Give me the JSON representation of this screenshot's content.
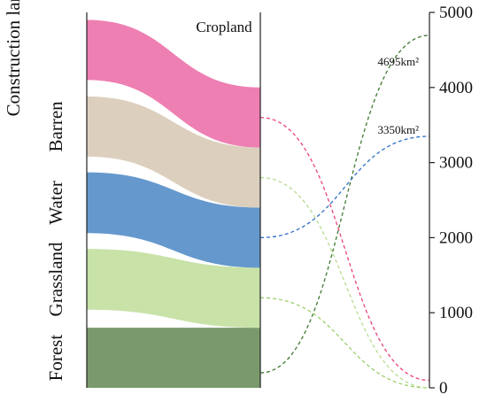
{
  "chart_data": {
    "type": "sankey-with-line-axis",
    "target_label": "Cropland",
    "categories": [
      "Forest",
      "Grassland",
      "Water",
      "Barren",
      "Construction land"
    ],
    "colors": {
      "Forest": "#7a9a6c",
      "Grassland": "#c8e2a8",
      "Water": "#6598cd",
      "Barren": "#dccfbd",
      "Construction land": "#ee7fb2"
    },
    "bands": [
      {
        "name": "Forest",
        "left": [
          0,
          800
        ],
        "right": [
          0,
          800
        ]
      },
      {
        "name": "Grassland",
        "left": [
          1040,
          1850
        ],
        "right": [
          800,
          1600
        ]
      },
      {
        "name": "Water",
        "left": [
          2060,
          2870
        ],
        "right": [
          1600,
          2400
        ]
      },
      {
        "name": "Barren",
        "left": [
          3080,
          3880
        ],
        "right": [
          2400,
          3200
        ]
      },
      {
        "name": "Construction land",
        "left": [
          4100,
          4900
        ],
        "right": [
          3200,
          4000
        ]
      }
    ],
    "y_axis": {
      "ticks": [
        0,
        1000,
        2000,
        3000,
        4000,
        5000
      ],
      "ylim": [
        0,
        5000
      ]
    },
    "lines": [
      {
        "name": "Forest",
        "color": "#3f7a30",
        "y0": 200,
        "y1": 4695
      },
      {
        "name": "Grassland",
        "color": "#9bcf6a",
        "y0": 1200,
        "y1": 0
      },
      {
        "name": "Water",
        "color": "#2f6fc4",
        "y0": 2000,
        "y1": 3350
      },
      {
        "name": "Barren",
        "color": "#b8dc92",
        "y0": 2800,
        "y1": 0
      },
      {
        "name": "Construction land",
        "color": "#e8457a",
        "y0": 3600,
        "y1": 100
      }
    ],
    "annotations": [
      {
        "text": "4695km²",
        "series": "Forest"
      },
      {
        "text": "3350km²",
        "series": "Water"
      }
    ]
  }
}
